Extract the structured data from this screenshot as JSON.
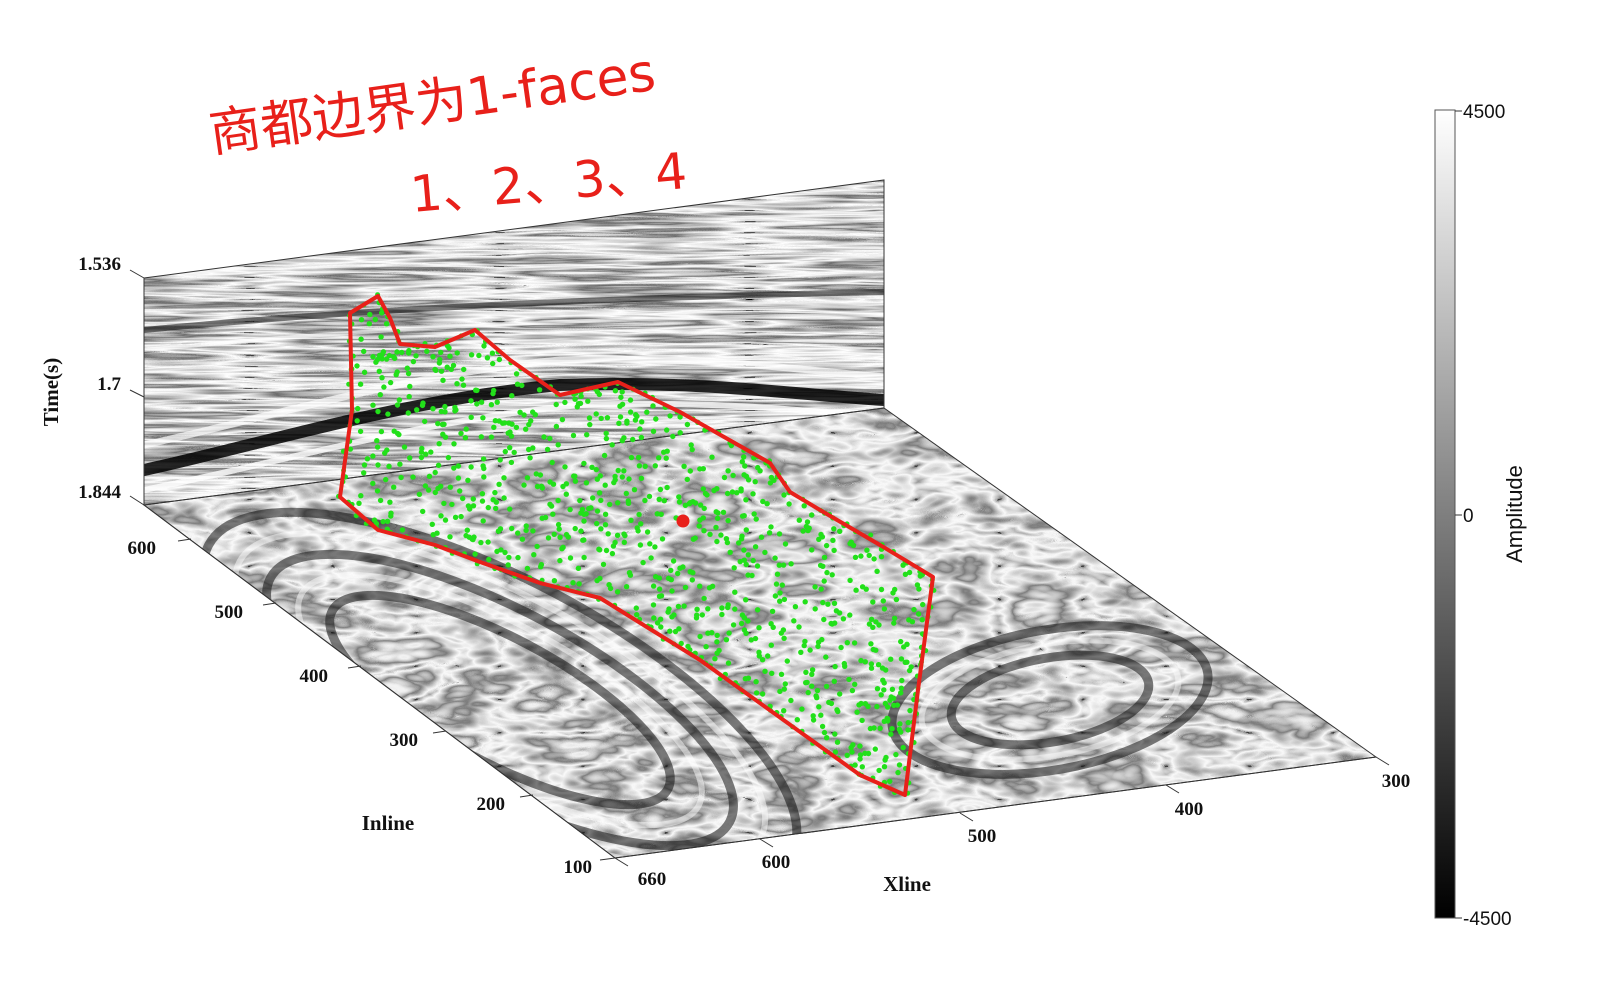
{
  "chart_data": {
    "type": "scatter",
    "subtype": "3d-seismic-slices",
    "axes": {
      "time": {
        "label": "Time(s)",
        "ticks": [
          "1.536",
          "1.7",
          "1.844"
        ],
        "range": [
          1.536,
          1.844
        ]
      },
      "inline": {
        "label": "Inline",
        "ticks": [
          "100",
          "200",
          "300",
          "400",
          "500",
          "600"
        ],
        "range": [
          100,
          660
        ]
      },
      "xline": {
        "label": "Xline",
        "ticks": [
          "660",
          "600",
          "500",
          "400",
          "300"
        ],
        "range": [
          300,
          660
        ]
      }
    },
    "colorbar": {
      "label": "Amplitude",
      "ticks": [
        "4500",
        "0",
        "-4500"
      ],
      "range": [
        -4500,
        4500
      ],
      "colormap": "gray"
    },
    "overlays": {
      "boundary_color": "#e8201a",
      "points_color": "#22e01a",
      "center_point_color": "#e8201a"
    },
    "annotation": {
      "line1": "商都边界为1-faces",
      "line2": "1、2、3、4",
      "color": "#e8201a"
    }
  }
}
